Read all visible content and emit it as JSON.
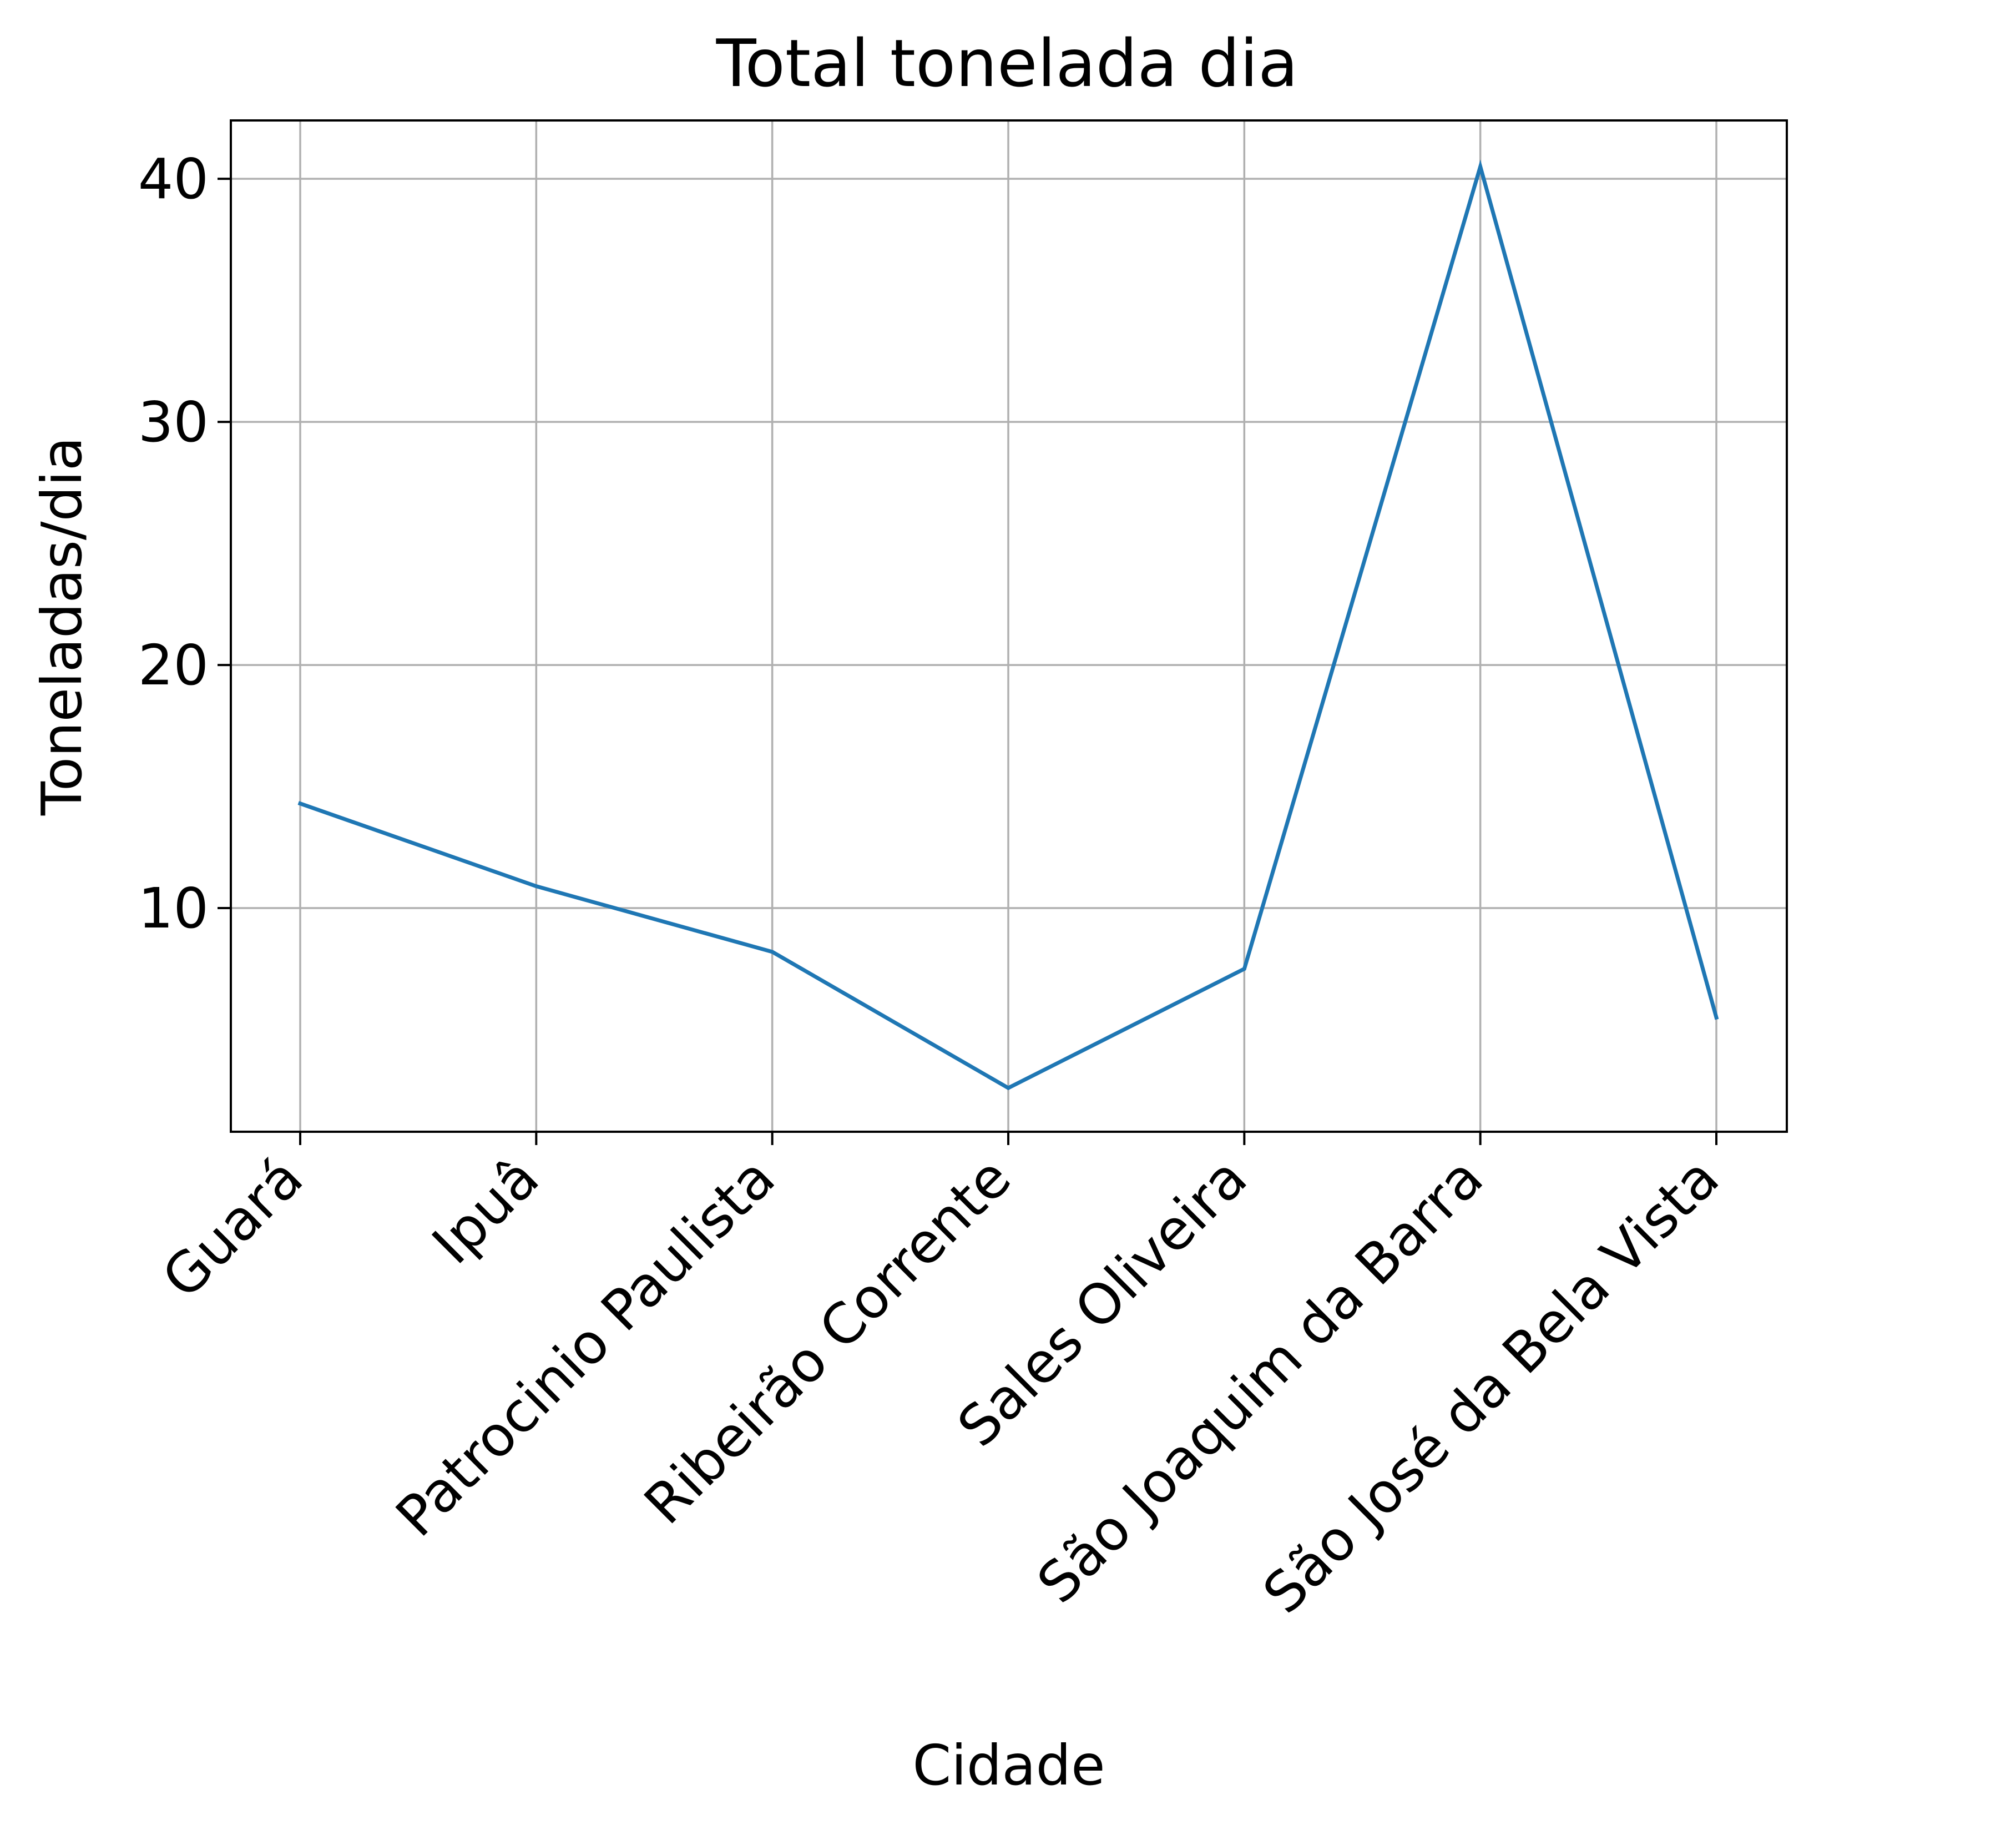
{
  "chart_data": {
    "type": "line",
    "title": "Total tonelada dia",
    "xlabel": "Cidade",
    "ylabel": "Toneladas/dia",
    "categories": [
      "Guará",
      "Ipuâ",
      "Patrocinio Paulista",
      "Ribeirão Corrente",
      "Sales Oliveira",
      "São Joaquim da Barra",
      "São José da Bela Vista"
    ],
    "series": [
      {
        "values": [
          14.3,
          10.9,
          8.2,
          2.6,
          7.5,
          40.5,
          5.5
        ],
        "color": "#1f77b4"
      }
    ],
    "yticks": [
      10,
      20,
      30,
      40
    ],
    "ylim": [
      0.8,
      42.4
    ],
    "grid": true,
    "legend": "none"
  }
}
